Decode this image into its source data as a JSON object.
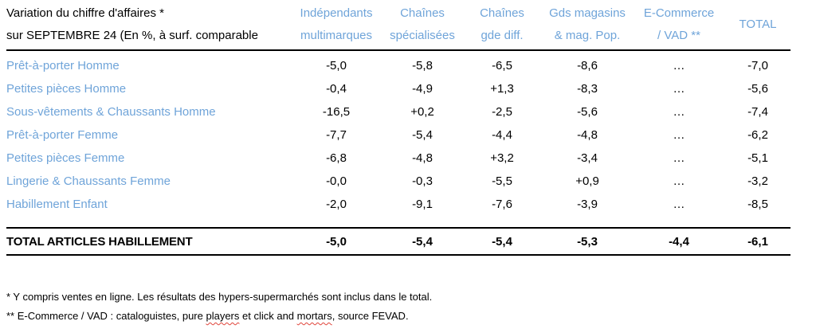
{
  "colors": {
    "accent_blue": "#6FA4D9",
    "text_black": "#000000",
    "rule_black": "#000000",
    "squiggle_red": "#e0443a"
  },
  "title": {
    "line1": "Variation du chiffre d'affaires *",
    "line2": "sur SEPTEMBRE 24 (En %, à surf. comparable"
  },
  "table": {
    "columns": [
      {
        "line1": "Indépendants",
        "line2": "multimarques"
      },
      {
        "line1": "Chaînes",
        "line2": "spécialisées"
      },
      {
        "line1": "Chaînes",
        "line2": "gde diff."
      },
      {
        "line1": "Gds magasins",
        "line2": "& mag. Pop."
      },
      {
        "line1": "E-Commerce",
        "line2": "/ VAD **"
      },
      {
        "line1": "TOTAL"
      }
    ],
    "rows": [
      {
        "label": "Prêt-à-porter Homme",
        "values": [
          "-5,0",
          "-5,8",
          "-6,5",
          "-8,6",
          "…",
          "-7,0"
        ]
      },
      {
        "label": "Petites pièces Homme",
        "values": [
          "-0,4",
          "-4,9",
          "+1,3",
          "-8,3",
          "…",
          "-5,6"
        ]
      },
      {
        "label": "Sous-vêtements & Chaussants Homme",
        "values": [
          "-16,5",
          "+0,2",
          "-2,5",
          "-5,6",
          "…",
          "-7,4"
        ]
      },
      {
        "label": "Prêt-à-porter Femme",
        "values": [
          "-7,7",
          "-5,4",
          "-4,4",
          "-4,8",
          "…",
          "-6,2"
        ]
      },
      {
        "label": "Petites pièces Femme",
        "values": [
          "-6,8",
          "-4,8",
          "+3,2",
          "-3,4",
          "…",
          "-5,1"
        ]
      },
      {
        "label": "Lingerie & Chaussants Femme",
        "values": [
          "-0,0",
          "-0,3",
          "-5,5",
          "+0,9",
          "…",
          "-3,2"
        ]
      },
      {
        "label": "Habillement Enfant",
        "values": [
          "-2,0",
          "-9,1",
          "-7,6",
          "-3,9",
          "…",
          "-8,5"
        ]
      }
    ],
    "total_row": {
      "label": "TOTAL ARTICLES HABILLEMENT",
      "values": [
        "-5,0",
        "-5,4",
        "-5,4",
        "-5,3",
        "-4,4",
        "-6,1"
      ]
    }
  },
  "footnotes": {
    "line1": "* Y compris ventes en ligne. Les résultats des hypers-supermarchés sont inclus dans le total.",
    "line2_segments": [
      "** E-Commerce / VAD : cataloguistes, pure ",
      "players",
      " et click and ",
      "mortars",
      ", source FEVAD."
    ]
  }
}
